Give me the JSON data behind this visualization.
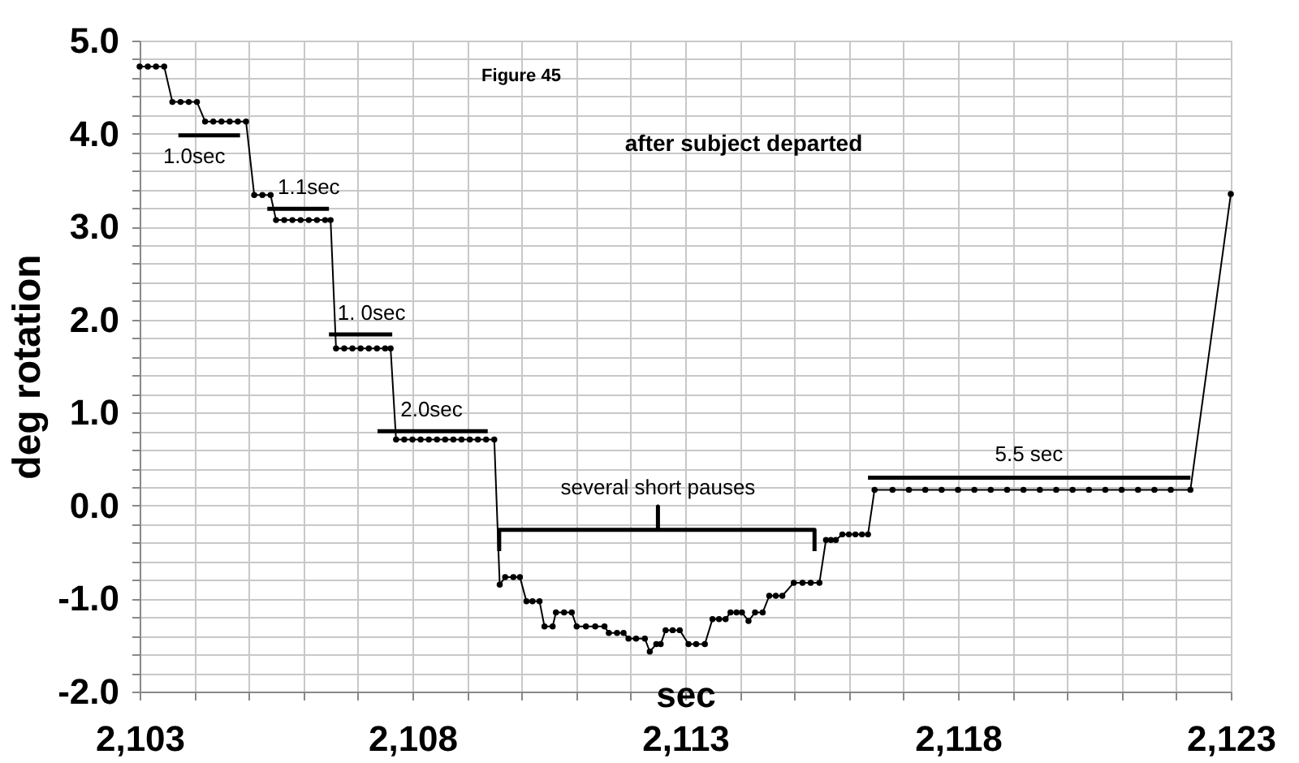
{
  "chart_data": {
    "type": "line",
    "title": "Figure 45",
    "subtitle": "after subject departed",
    "xlabel": "sec",
    "ylabel": "deg rotation",
    "xlim": [
      2103,
      2123
    ],
    "ylim": [
      -2.0,
      5.0
    ],
    "xticks": [
      {
        "value": 2103,
        "label": "2,103"
      },
      {
        "value": 2104,
        "label": null
      },
      {
        "value": 2105,
        "label": null
      },
      {
        "value": 2106,
        "label": null
      },
      {
        "value": 2107,
        "label": null
      },
      {
        "value": 2108,
        "label": "2,108"
      },
      {
        "value": 2109,
        "label": null
      },
      {
        "value": 2110,
        "label": null
      },
      {
        "value": 2111,
        "label": null
      },
      {
        "value": 2112,
        "label": null
      },
      {
        "value": 2113,
        "label": "2,113"
      },
      {
        "value": 2114,
        "label": null
      },
      {
        "value": 2115,
        "label": null
      },
      {
        "value": 2116,
        "label": null
      },
      {
        "value": 2117,
        "label": null
      },
      {
        "value": 2118,
        "label": "2,118"
      },
      {
        "value": 2119,
        "label": null
      },
      {
        "value": 2120,
        "label": null
      },
      {
        "value": 2121,
        "label": null
      },
      {
        "value": 2122,
        "label": null
      },
      {
        "value": 2123,
        "label": "2,123"
      }
    ],
    "yticks": [
      {
        "value": -2.0,
        "label": "-2.0"
      },
      {
        "value": -1.8,
        "label": null
      },
      {
        "value": -1.6,
        "label": null
      },
      {
        "value": -1.4,
        "label": null
      },
      {
        "value": -1.2,
        "label": null
      },
      {
        "value": -1.0,
        "label": "-1.0"
      },
      {
        "value": -0.8,
        "label": null
      },
      {
        "value": -0.6,
        "label": null
      },
      {
        "value": -0.4,
        "label": null
      },
      {
        "value": -0.2,
        "label": null
      },
      {
        "value": 0.0,
        "label": "0.0"
      },
      {
        "value": 0.2,
        "label": null
      },
      {
        "value": 0.4,
        "label": null
      },
      {
        "value": 0.6,
        "label": null
      },
      {
        "value": 0.8,
        "label": null
      },
      {
        "value": 1.0,
        "label": "1.0"
      },
      {
        "value": 1.2,
        "label": null
      },
      {
        "value": 1.4,
        "label": null
      },
      {
        "value": 1.6,
        "label": null
      },
      {
        "value": 1.8,
        "label": null
      },
      {
        "value": 2.0,
        "label": "2.0"
      },
      {
        "value": 2.2,
        "label": null
      },
      {
        "value": 2.4,
        "label": null
      },
      {
        "value": 2.6,
        "label": null
      },
      {
        "value": 2.8,
        "label": null
      },
      {
        "value": 3.0,
        "label": "3.0"
      },
      {
        "value": 3.2,
        "label": null
      },
      {
        "value": 3.4,
        "label": null
      },
      {
        "value": 3.6,
        "label": null
      },
      {
        "value": 3.8,
        "label": null
      },
      {
        "value": 4.0,
        "label": "4.0"
      },
      {
        "value": 4.2,
        "label": null
      },
      {
        "value": 4.4,
        "label": null
      },
      {
        "value": 4.6,
        "label": null
      },
      {
        "value": 4.8,
        "label": null
      },
      {
        "value": 5.0,
        "label": "5.0"
      }
    ],
    "grid": true,
    "series": [
      {
        "marker": "circle",
        "color": "#000000",
        "x": [
          2103.0,
          2103.15,
          2103.3,
          2103.45,
          2103.6,
          2103.75,
          2103.9,
          2104.05,
          2104.2,
          2104.35,
          2104.5,
          2104.65,
          2104.8,
          2104.95,
          2105.1,
          2105.25,
          2105.4,
          2105.5,
          2105.65,
          2105.8,
          2105.95,
          2106.1,
          2106.25,
          2106.4,
          2106.5,
          2106.6,
          2106.75,
          2106.9,
          2107.05,
          2107.2,
          2107.35,
          2107.5,
          2107.6,
          2107.7,
          2107.85,
          2108.0,
          2108.15,
          2108.3,
          2108.45,
          2108.6,
          2108.75,
          2108.9,
          2109.05,
          2109.2,
          2109.35,
          2109.5,
          2109.6,
          2109.7,
          2109.85,
          2109.97,
          2110.09,
          2110.2,
          2110.33,
          2110.42,
          2110.57,
          2110.63,
          2110.78,
          2110.92,
          2111.01,
          2111.18,
          2111.35,
          2111.52,
          2111.6,
          2111.75,
          2111.87,
          2111.96,
          2112.1,
          2112.26,
          2112.35,
          2112.47,
          2112.55,
          2112.64,
          2112.77,
          2112.9,
          2113.06,
          2113.2,
          2113.36,
          2113.5,
          2113.62,
          2113.74,
          2113.83,
          2113.94,
          2114.04,
          2114.16,
          2114.28,
          2114.42,
          2114.54,
          2114.66,
          2114.78,
          2114.99,
          2115.15,
          2115.3,
          2115.46,
          2115.58,
          2115.67,
          2115.76,
          2115.88,
          2116.0,
          2116.12,
          2116.24,
          2116.35,
          2116.47,
          2116.8,
          2117.1,
          2117.4,
          2117.7,
          2118.0,
          2118.3,
          2118.6,
          2118.9,
          2119.2,
          2119.5,
          2119.8,
          2120.1,
          2120.4,
          2120.7,
          2121.0,
          2121.3,
          2121.6,
          2121.9,
          2122.26,
          2123.0
        ],
        "values": [
          4.72,
          4.72,
          4.72,
          4.72,
          4.34,
          4.34,
          4.34,
          4.34,
          4.13,
          4.13,
          4.13,
          4.13,
          4.13,
          4.13,
          3.34,
          3.34,
          3.34,
          3.07,
          3.07,
          3.07,
          3.07,
          3.07,
          3.07,
          3.07,
          3.07,
          1.69,
          1.69,
          1.69,
          1.69,
          1.69,
          1.69,
          1.69,
          1.69,
          0.71,
          0.71,
          0.71,
          0.71,
          0.71,
          0.71,
          0.71,
          0.71,
          0.71,
          0.71,
          0.71,
          0.71,
          0.71,
          -0.85,
          -0.77,
          -0.77,
          -0.77,
          -1.03,
          -1.03,
          -1.03,
          -1.3,
          -1.3,
          -1.15,
          -1.15,
          -1.15,
          -1.3,
          -1.3,
          -1.3,
          -1.3,
          -1.37,
          -1.37,
          -1.37,
          -1.43,
          -1.43,
          -1.43,
          -1.57,
          -1.49,
          -1.49,
          -1.34,
          -1.34,
          -1.34,
          -1.49,
          -1.49,
          -1.49,
          -1.22,
          -1.22,
          -1.22,
          -1.15,
          -1.15,
          -1.15,
          -1.24,
          -1.15,
          -1.15,
          -0.97,
          -0.97,
          -0.97,
          -0.83,
          -0.83,
          -0.83,
          -0.83,
          -0.37,
          -0.37,
          -0.37,
          -0.31,
          -0.31,
          -0.31,
          -0.31,
          -0.31,
          0.17,
          0.17,
          0.17,
          0.17,
          0.17,
          0.17,
          0.17,
          0.17,
          0.17,
          0.17,
          0.17,
          0.17,
          0.17,
          0.17,
          0.17,
          0.17,
          0.17,
          0.17,
          0.17,
          0.17,
          3.35
        ]
      },
      {
        "marker": "none",
        "color": "#000000",
        "x": [
          2103.71,
          2104.84
        ],
        "values": [
          3.98,
          3.98
        ]
      },
      {
        "marker": "none",
        "color": "#000000",
        "x": [
          2105.34,
          2106.47
        ],
        "values": [
          3.19,
          3.19
        ]
      },
      {
        "marker": "none",
        "color": "#000000",
        "x": [
          2106.47,
          2107.63
        ],
        "values": [
          1.84,
          1.84
        ]
      },
      {
        "marker": "none",
        "color": "#000000",
        "x": [
          2107.36,
          2109.38
        ],
        "values": [
          0.8,
          0.8
        ]
      },
      {
        "marker": "none",
        "color": "#000000",
        "x": [
          2116.35,
          2122.26
        ],
        "values": [
          0.3,
          0.3
        ]
      },
      {
        "marker": "none",
        "color": "#000000",
        "x": [
          2109.59,
          2109.59,
          2112.5,
          2112.5,
          2112.5,
          2115.37,
          2115.37
        ],
        "values": [
          -0.49,
          -0.26,
          -0.26,
          -0.01,
          -0.26,
          -0.26,
          -0.49
        ]
      }
    ],
    "annotations": [
      {
        "text": "1.0sec",
        "x": 2104.0,
        "y": 3.98
      },
      {
        "text": "1.1sec",
        "x": 2106.1,
        "y": 3.19
      },
      {
        "text": "1. 0sec",
        "x": 2107.25,
        "y": 1.84
      },
      {
        "text": "2.0sec",
        "x": 2108.35,
        "y": 0.8
      },
      {
        "text": "several short pauses",
        "x": 2112.5,
        "y": -0.26
      },
      {
        "text": "5.5 sec",
        "x": 2119.3,
        "y": 0.3
      }
    ]
  }
}
